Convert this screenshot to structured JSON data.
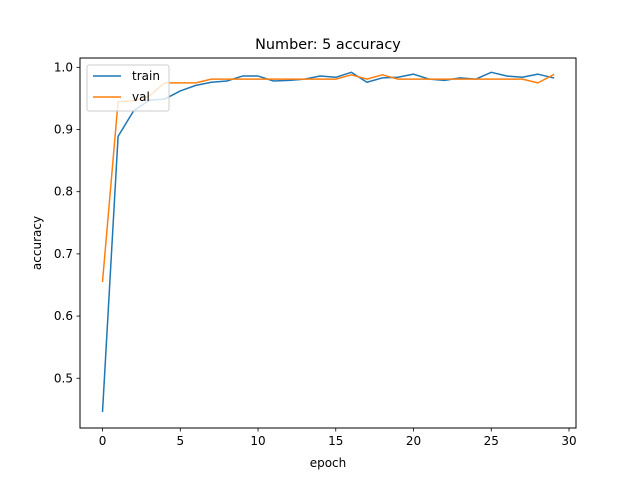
{
  "chart_data": {
    "type": "line",
    "title": "Number: 5 accuracy",
    "xlabel": "epoch",
    "ylabel": "accuracy",
    "xlim": [
      -1.45,
      30.45
    ],
    "ylim": [
      0.42,
      1.015
    ],
    "xticks": [
      0,
      5,
      10,
      15,
      20,
      25,
      30
    ],
    "xtick_labels": [
      "0",
      "5",
      "10",
      "15",
      "20",
      "25",
      "30"
    ],
    "yticks": [
      0.5,
      0.6,
      0.7,
      0.8,
      0.9,
      1.0
    ],
    "ytick_labels": [
      "0.5",
      "0.6",
      "0.7",
      "0.8",
      "0.9",
      "1.0"
    ],
    "grid": false,
    "legend_position": "top-left",
    "x": [
      0,
      1,
      2,
      3,
      4,
      5,
      6,
      7,
      8,
      9,
      10,
      11,
      12,
      13,
      14,
      15,
      16,
      17,
      18,
      19,
      20,
      21,
      22,
      23,
      24,
      25,
      26,
      27,
      28,
      29
    ],
    "series": [
      {
        "name": "train",
        "color": "#1f77b4",
        "values": [
          0.447,
          0.889,
          0.93,
          0.947,
          0.949,
          0.962,
          0.971,
          0.976,
          0.978,
          0.986,
          0.986,
          0.978,
          0.979,
          0.981,
          0.986,
          0.984,
          0.992,
          0.976,
          0.983,
          0.984,
          0.989,
          0.981,
          0.979,
          0.983,
          0.981,
          0.992,
          0.986,
          0.984,
          0.989,
          0.983
        ]
      },
      {
        "name": "val",
        "color": "#ff7f0e",
        "values": [
          0.656,
          0.945,
          0.946,
          0.954,
          0.975,
          0.975,
          0.975,
          0.981,
          0.981,
          0.981,
          0.981,
          0.981,
          0.981,
          0.981,
          0.981,
          0.981,
          0.988,
          0.981,
          0.988,
          0.981,
          0.981,
          0.981,
          0.981,
          0.981,
          0.981,
          0.981,
          0.981,
          0.981,
          0.975,
          0.988
        ]
      }
    ]
  }
}
